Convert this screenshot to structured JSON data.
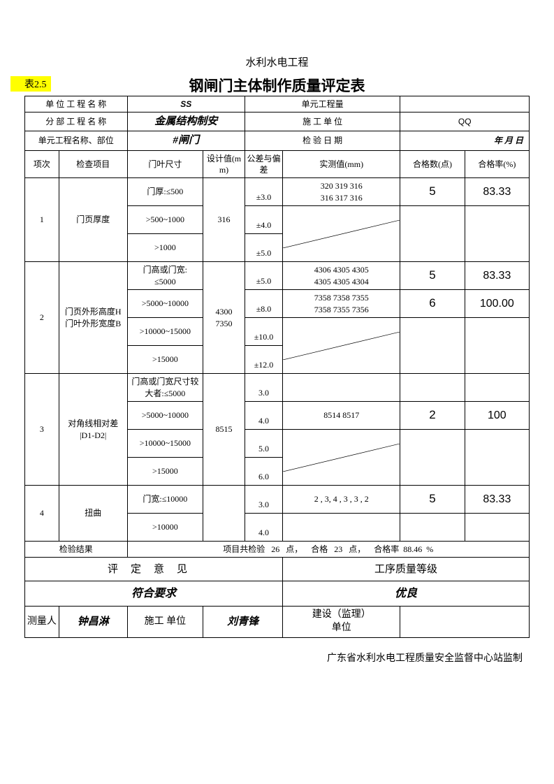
{
  "pretitle": "水利水电工程",
  "table_tag": "表2.5",
  "title": "钢闸门主体制作质量评定表",
  "header": {
    "unit_project_label": "单 位 工 程 名 称",
    "unit_project_value": "SS",
    "unit_qty_label": "单元工程量",
    "unit_qty_value": "",
    "sub_project_label": "分 部 工 程 名 称",
    "sub_project_value": "金属结构制安",
    "construct_unit_label": "施 工  单 位",
    "construct_unit_value": "QQ",
    "unit_name_label": "单元工程名称、部位",
    "unit_name_value": "#闸门",
    "inspect_date_label": "检 验  日 期",
    "inspect_date_value": "年    月     日"
  },
  "columns": {
    "c1": "项次",
    "c2": "检查项目",
    "c3": "门叶尺寸",
    "c4": "设计值(mm)",
    "c5": "公差与偏差",
    "c6": "实测值(mm)",
    "c7": "合格数(点)",
    "c8": "合格率(%)"
  },
  "rows": [
    {
      "idx": "1",
      "item": "门页厚度",
      "design": "316",
      "sub": [
        {
          "size": "门厚:≤500",
          "tol": "±3.0",
          "meas": "320  319  316\n316  317  316",
          "ok": "5",
          "rate": "83.33"
        },
        {
          "size": ">500~1000",
          "tol": "±4.0",
          "meas": "",
          "ok": "",
          "rate": ""
        },
        {
          "size": ">1000",
          "tol": "±5.0",
          "meas": "",
          "ok": "",
          "rate": ""
        }
      ],
      "diag_rows": 2
    },
    {
      "idx": "2",
      "item": "门页外形高度H\n门叶外形宽度B",
      "design": "4300\n7350",
      "sub": [
        {
          "size": "门高或门宽:\n≤5000",
          "tol": "±5.0",
          "meas": "4306   4305  4305\n4305   4305  4304",
          "ok": "5",
          "rate": "83.33"
        },
        {
          "size": ">5000~10000",
          "tol": "±8.0",
          "meas": "7358   7358  7355\n7358   7355  7356",
          "ok": "6",
          "rate": "100.00"
        },
        {
          "size": ">10000~15000",
          "tol": "±10.0",
          "meas": "",
          "ok": "",
          "rate": ""
        },
        {
          "size": ">15000",
          "tol": "±12.0",
          "meas": "",
          "ok": "",
          "rate": ""
        }
      ],
      "diag_rows": 2
    },
    {
      "idx": "3",
      "item": "对角线相对差\n|D1-D2|",
      "design": "8515",
      "sub": [
        {
          "size": "门高或门宽尺寸较大者:≤5000",
          "tol": "3.0",
          "meas": "",
          "ok": "",
          "rate": ""
        },
        {
          "size": ">5000~10000",
          "tol": "4.0",
          "meas": "8514    8517",
          "ok": "2",
          "rate": "100"
        },
        {
          "size": ">10000~15000",
          "tol": "5.0",
          "meas": "",
          "ok": "",
          "rate": ""
        },
        {
          "size": ">15000",
          "tol": "6.0",
          "meas": "",
          "ok": "",
          "rate": ""
        }
      ],
      "diag_rows": 2
    },
    {
      "idx": "4",
      "item": "扭曲",
      "design": "",
      "sub": [
        {
          "size": "门宽:≤10000",
          "tol": "3.0",
          "meas": "2 ,   3,   4 ,   3 ,  3 ,  2",
          "ok": "5",
          "rate": "83.33"
        },
        {
          "size": ">10000",
          "tol": "4.0",
          "meas": "",
          "ok": "",
          "rate": ""
        }
      ],
      "diag_rows": 0
    }
  ],
  "result": {
    "label": "检验结果",
    "text_a": "项目共检验",
    "points": "26",
    "text_b": "点，",
    "text_c": "合格",
    "pass": "23",
    "text_d": "点，",
    "text_e": "合格率",
    "rate": "88.46",
    "text_f": "%"
  },
  "opinion": {
    "left_title": "评定意见",
    "right_title": "工序质量等级",
    "left_value": "符合要求",
    "right_value": "优良"
  },
  "sign": {
    "measurer_label": "测量人",
    "measurer_value": "钟昌淋",
    "construct_label": "施工  单位",
    "construct_value": "刘青锋",
    "build_label": "建设（监理）\n单位",
    "build_value": ""
  },
  "footer": "广东省水利水电工程质量安全监督中心站监制",
  "colors": {
    "highlight": "#ffff00",
    "border": "#000000",
    "text": "#000000",
    "bg": "#ffffff"
  }
}
